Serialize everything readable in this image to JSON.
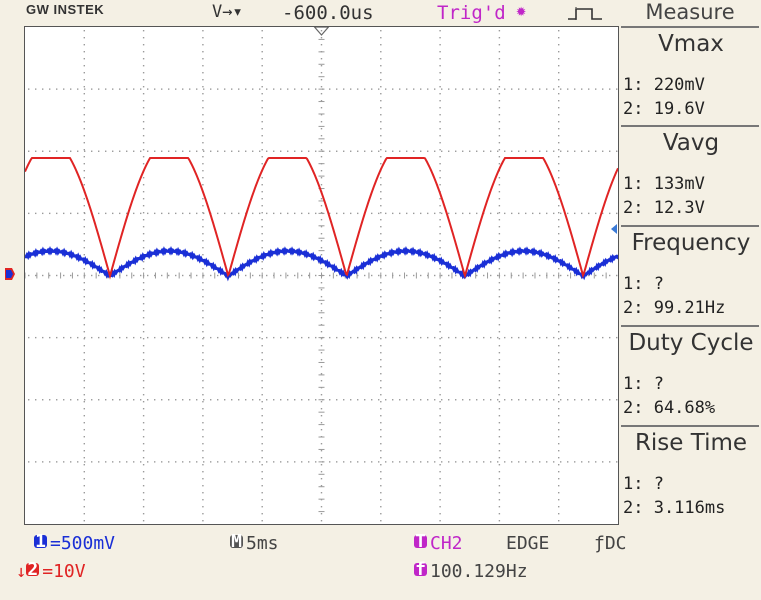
{
  "header": {
    "brand": "GW INSTEK",
    "timebase_arrows": "V→▾",
    "horizontal_position": "-600.0us",
    "trigger_status": "Trig'd",
    "trigger_icon": "gear-icon",
    "pulse_icon": "pulse-waveform-icon"
  },
  "measure": {
    "title": "Measure",
    "items": [
      {
        "name": "Vmax",
        "ch1": "1: 220mV",
        "ch2": "2: 19.6V"
      },
      {
        "name": "Vavg",
        "ch1": "1: 133mV",
        "ch2": "2: 12.3V"
      },
      {
        "name": "Frequency",
        "ch1": "1:    ?",
        "ch2": "2: 99.21Hz"
      },
      {
        "name": "Duty Cycle",
        "ch1": "1:    ?",
        "ch2": "2: 64.68%"
      },
      {
        "name": "Rise Time",
        "ch1": "1:    ?",
        "ch2": "2: 3.116ms"
      }
    ]
  },
  "footer": {
    "ch1_badge": "1",
    "ch1_scale": "=500mV",
    "ch2_badge": "2",
    "ch2_scale": "=10V",
    "timebase_badge": "M",
    "timebase": "5ms",
    "trigger_badge": "T",
    "trigger_source": "CH2",
    "trigger_type": "EDGE",
    "trigger_coupling": "ƒDC",
    "freq_badge": "f",
    "trigger_frequency": "100.129Hz"
  },
  "colors": {
    "ch1": "#1a2fd6",
    "ch2": "#e02424",
    "trigger": "#c026c8"
  }
}
